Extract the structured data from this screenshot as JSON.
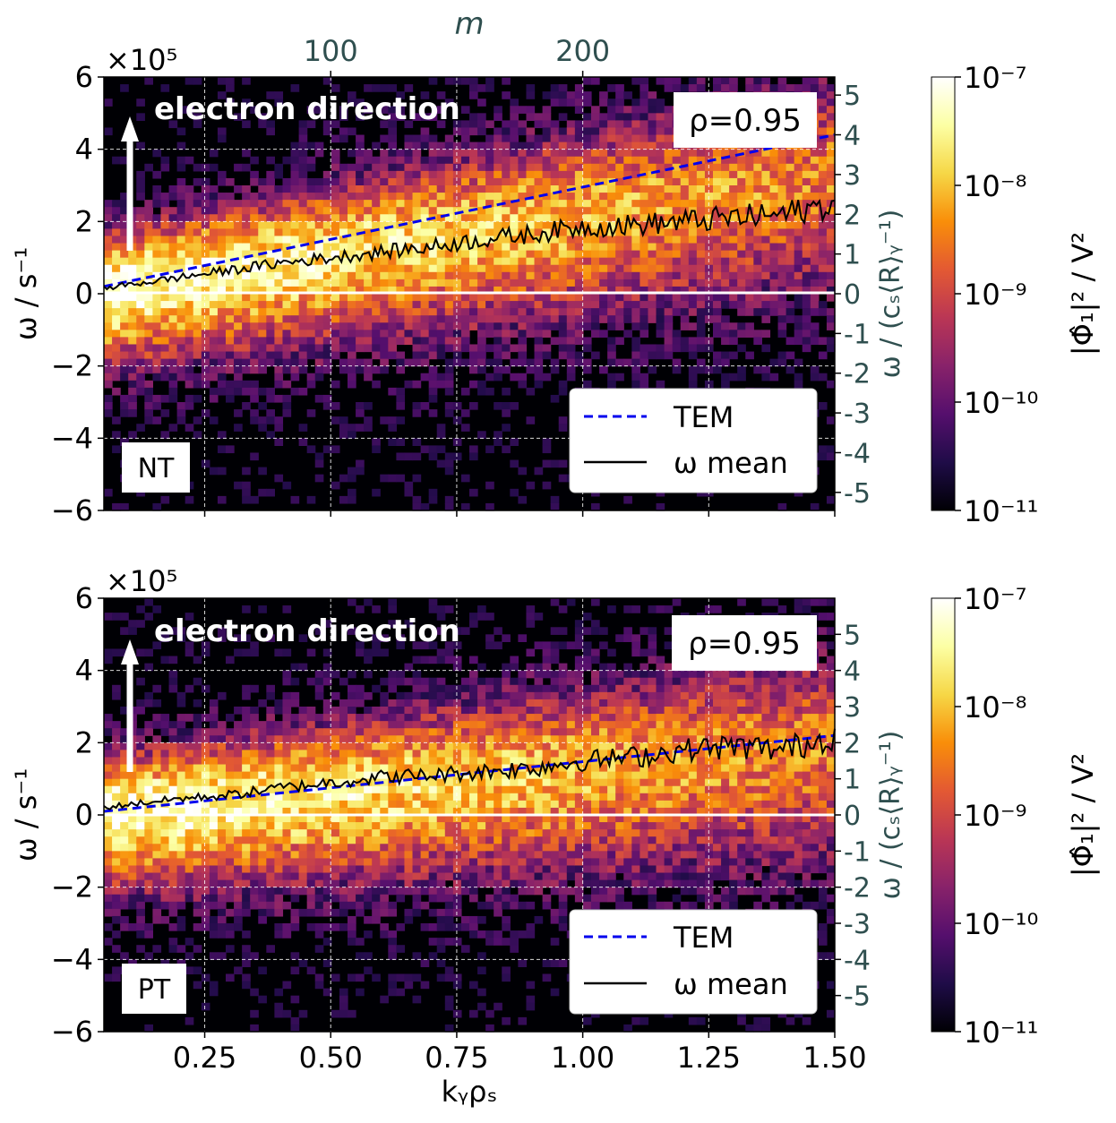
{
  "chart_data": [
    {
      "type": "heatmap",
      "panel_label": "NT",
      "annotation": "electron direction",
      "rho_label": "ρ=0.95",
      "offset_label": "×10⁵",
      "xlabel": "kᵧρₛ",
      "ylabel": "ω / s⁻¹",
      "ylabel_right": "ω / (cₛ⟨R⟩ᵧ⁻¹)",
      "top_axis_label": "m",
      "xlim": [
        0.05,
        1.5
      ],
      "ylim": [
        -6,
        6
      ],
      "xticks": [
        0.25,
        0.5,
        0.75,
        1.0,
        1.25,
        1.5
      ],
      "xticklabels": [
        "0.25",
        "0.50",
        "0.75",
        "1.00",
        "1.25",
        "1.50"
      ],
      "yticks": [
        -6,
        -4,
        -2,
        0,
        2,
        4,
        6
      ],
      "yticklabels": [
        "−6",
        "−4",
        "−2",
        "0",
        "2",
        "4",
        "6"
      ],
      "top_ticks": [
        0.5,
        1.0
      ],
      "top_ticklabels": [
        "100",
        "200"
      ],
      "right_ticklabels": [
        "-5",
        "-4",
        "-3",
        "-2",
        "-1",
        "0",
        "1",
        "2",
        "3",
        "4",
        "5"
      ],
      "right_scale": 1.1,
      "legend": {
        "location": "lower right",
        "entries": [
          "TEM",
          "ω mean"
        ]
      },
      "series": [
        {
          "name": "TEM",
          "style": "dashed",
          "color": "#0000ee",
          "x": [
            0.05,
            1.5
          ],
          "y": [
            0.2,
            4.4
          ]
        },
        {
          "name": "ω mean",
          "style": "solid",
          "color": "#000000",
          "x": [
            0.05,
            0.1,
            0.2,
            0.3,
            0.4,
            0.5,
            0.6,
            0.7,
            0.8,
            0.9,
            1.0,
            1.1,
            1.2,
            1.3,
            1.4,
            1.5
          ],
          "y": [
            0.15,
            0.25,
            0.45,
            0.65,
            0.85,
            1.0,
            1.15,
            1.3,
            1.5,
            1.65,
            1.85,
            1.9,
            2.0,
            2.1,
            2.2,
            2.5
          ]
        }
      ]
    },
    {
      "type": "heatmap",
      "panel_label": "PT",
      "annotation": "electron direction",
      "rho_label": "ρ=0.95",
      "offset_label": "×10⁵",
      "xlabel": "kᵧρₛ",
      "ylabel": "ω / s⁻¹",
      "ylabel_right": "ω / (cₛ⟨R⟩ᵧ⁻¹)",
      "xlim": [
        0.05,
        1.5
      ],
      "ylim": [
        -6,
        6
      ],
      "xticks": [
        0.25,
        0.5,
        0.75,
        1.0,
        1.25,
        1.5
      ],
      "xticklabels": [
        "0.25",
        "0.50",
        "0.75",
        "1.00",
        "1.25",
        "1.50"
      ],
      "yticks": [
        -6,
        -4,
        -2,
        0,
        2,
        4,
        6
      ],
      "yticklabels": [
        "−6",
        "−4",
        "−2",
        "0",
        "2",
        "4",
        "6"
      ],
      "right_ticklabels": [
        "-5",
        "-4",
        "-3",
        "-2",
        "-1",
        "0",
        "1",
        "2",
        "3",
        "4",
        "5"
      ],
      "right_scale": 1.0,
      "legend": {
        "location": "lower right",
        "entries": [
          "TEM",
          "ω mean"
        ]
      },
      "series": [
        {
          "name": "TEM",
          "style": "dashed",
          "color": "#0000ee",
          "x": [
            0.05,
            1.5
          ],
          "y": [
            0.1,
            2.2
          ]
        },
        {
          "name": "ω mean",
          "style": "solid",
          "color": "#000000",
          "x": [
            0.05,
            0.1,
            0.2,
            0.3,
            0.4,
            0.5,
            0.6,
            0.7,
            0.8,
            0.9,
            1.0,
            1.1,
            1.2,
            1.3,
            1.4,
            1.5
          ],
          "y": [
            0.2,
            0.3,
            0.45,
            0.55,
            0.75,
            0.9,
            1.05,
            1.1,
            1.2,
            1.3,
            1.5,
            1.6,
            1.8,
            1.9,
            1.8,
            2.2
          ]
        }
      ]
    }
  ],
  "colorbar": {
    "label": "|Φ̂₁|² / V²",
    "ticklabels": [
      "10⁻⁷",
      "10⁻⁸",
      "10⁻⁹",
      "10⁻¹⁰",
      "10⁻¹¹"
    ],
    "colormap": [
      "#000004",
      "#1f0c48",
      "#550f6d",
      "#88226a",
      "#ba3655",
      "#e35933",
      "#f98e09",
      "#f6d746",
      "#fcffa4",
      "#ffffff"
    ]
  },
  "colors": {
    "axis_text": "#000000",
    "right_axis_text": "#2f4f4f",
    "zero_line": "#ffffff"
  }
}
